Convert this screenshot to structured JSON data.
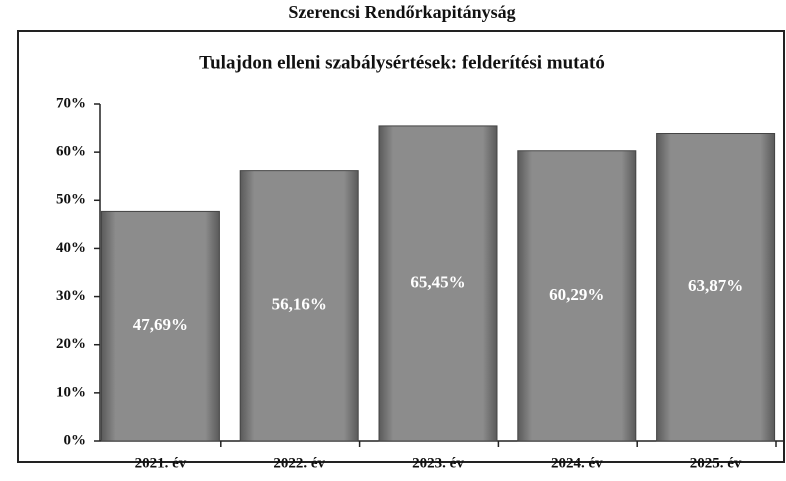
{
  "chart_data": {
    "type": "bar",
    "title": "Szerencsi Rendőrkapitányság",
    "subtitle": "Tulajdon elleni szabálysértések: felderítési mutató",
    "categories": [
      "2021. év",
      "2022. év",
      "2023. év",
      "2024. év",
      "2025. év"
    ],
    "values": [
      47.69,
      56.16,
      65.45,
      60.29,
      63.87
    ],
    "value_labels": [
      "47,69%",
      "56,16%",
      "65,45%",
      "60,29%",
      "63,87%"
    ],
    "color": "#8c8c8c",
    "ylim": [
      0,
      70
    ],
    "yticks": [
      {
        "value": 0,
        "label": "0%"
      },
      {
        "value": 10,
        "label": "10%"
      },
      {
        "value": 20,
        "label": "20%"
      },
      {
        "value": 30,
        "label": "30%"
      },
      {
        "value": 40,
        "label": "40%"
      },
      {
        "value": 50,
        "label": "50%"
      },
      {
        "value": 60,
        "label": "60%"
      },
      {
        "value": 70,
        "label": "70%"
      }
    ],
    "grid": false
  }
}
